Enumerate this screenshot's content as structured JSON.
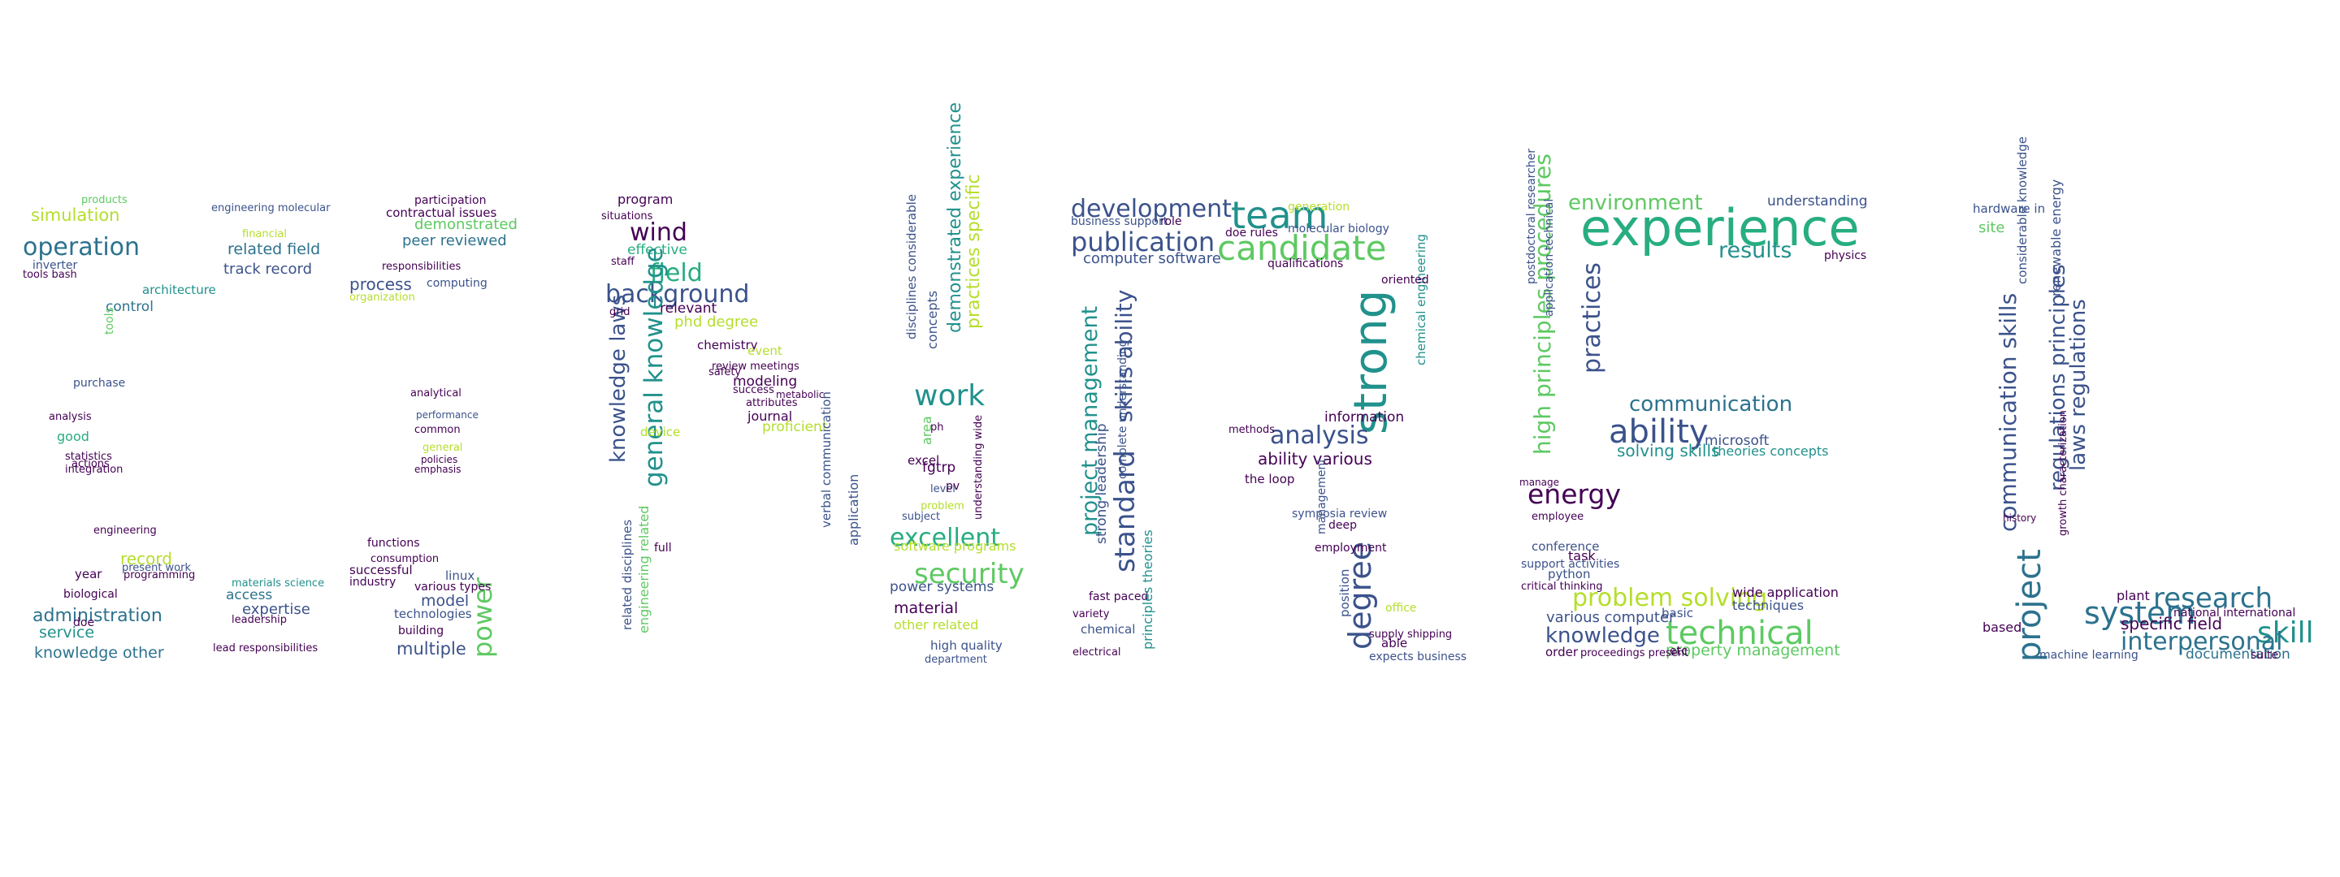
{
  "palette": {
    "purple": "#440154",
    "indigo": "#3b528b",
    "blue": "#2c728e",
    "teal": "#21918c",
    "green": "#27ad81",
    "lime": "#5ec962",
    "yellow": "#b5de2b"
  },
  "words": [
    {
      "id": "w0",
      "text": "operation",
      "color": "#2c728e"
    },
    {
      "id": "w1",
      "text": "simulation",
      "color": "#b5de2b"
    },
    {
      "id": "w2",
      "text": "products",
      "color": "#5ec962"
    },
    {
      "id": "w3",
      "text": "inverter",
      "color": "#3b528b"
    },
    {
      "id": "w4",
      "text": "tools bash",
      "color": "#440154"
    },
    {
      "id": "w5",
      "text": "related field",
      "color": "#2c728e"
    },
    {
      "id": "w6",
      "text": "track record",
      "color": "#3b528b"
    },
    {
      "id": "w7",
      "text": "process",
      "color": "#3b528b"
    },
    {
      "id": "w8",
      "text": "architecture",
      "color": "#21918c"
    },
    {
      "id": "w9",
      "text": "control",
      "color": "#2c728e"
    },
    {
      "id": "w10",
      "text": "engineering molecular",
      "color": "#3b528b"
    },
    {
      "id": "w11",
      "text": "participation",
      "color": "#440154"
    },
    {
      "id": "w12",
      "text": "contractual issues",
      "color": "#440154"
    },
    {
      "id": "w13",
      "text": "demonstrated",
      "color": "#5ec962"
    },
    {
      "id": "w14",
      "text": "peer reviewed",
      "color": "#2c728e"
    },
    {
      "id": "w15",
      "text": "computing",
      "color": "#3b528b"
    },
    {
      "id": "w16",
      "text": "purchase",
      "color": "#3b528b"
    },
    {
      "id": "w17",
      "text": "good",
      "color": "#27ad81"
    },
    {
      "id": "w18",
      "text": "analytical",
      "color": "#440154"
    },
    {
      "id": "w19",
      "text": "common",
      "color": "#440154"
    },
    {
      "id": "w20",
      "text": "record",
      "color": "#b5de2b"
    },
    {
      "id": "w21",
      "text": "year",
      "color": "#440154"
    },
    {
      "id": "w22",
      "text": "administration",
      "color": "#2c728e"
    },
    {
      "id": "w23",
      "text": "service",
      "color": "#21918c"
    },
    {
      "id": "w24",
      "text": "knowledge other",
      "color": "#2c728e"
    },
    {
      "id": "w25",
      "text": "access",
      "color": "#2c728e"
    },
    {
      "id": "w26",
      "text": "expertise",
      "color": "#3b528b"
    },
    {
      "id": "w27",
      "text": "lead responsibilities",
      "color": "#440154"
    },
    {
      "id": "w28",
      "text": "linux",
      "color": "#3b528b"
    },
    {
      "id": "w29",
      "text": "model",
      "color": "#3b528b"
    },
    {
      "id": "w30",
      "text": "multiple",
      "color": "#3b528b"
    },
    {
      "id": "w31",
      "text": "power",
      "color": "#5ec962"
    },
    {
      "id": "w32",
      "text": "program",
      "color": "#440154"
    },
    {
      "id": "w33",
      "text": "wind",
      "color": "#440154"
    },
    {
      "id": "w34",
      "text": "field",
      "color": "#27ad81"
    },
    {
      "id": "w35",
      "text": "background",
      "color": "#3b528b"
    },
    {
      "id": "w36",
      "text": "effective",
      "color": "#27ad81"
    },
    {
      "id": "w37",
      "text": "relevant",
      "color": "#440154"
    },
    {
      "id": "w38",
      "text": "knowledge laws",
      "color": "#3b528b"
    },
    {
      "id": "w39",
      "text": "general knowledge",
      "color": "#21918c"
    },
    {
      "id": "w40",
      "text": "chemistry",
      "color": "#440154"
    },
    {
      "id": "w41",
      "text": "event",
      "color": "#b5de2b"
    },
    {
      "id": "w42",
      "text": "modeling",
      "color": "#440154"
    },
    {
      "id": "w43",
      "text": "journal",
      "color": "#440154"
    },
    {
      "id": "w44",
      "text": "proficient",
      "color": "#b5de2b"
    },
    {
      "id": "w45",
      "text": "work",
      "color": "#21918c"
    },
    {
      "id": "w46",
      "text": "excellent",
      "color": "#27ad81"
    },
    {
      "id": "w47",
      "text": "security",
      "color": "#5ec962"
    },
    {
      "id": "w48",
      "text": "software programs",
      "color": "#b5de2b"
    },
    {
      "id": "w49",
      "text": "power systems",
      "color": "#3b528b"
    },
    {
      "id": "w50",
      "text": "material",
      "color": "#440154"
    },
    {
      "id": "w51",
      "text": "high quality",
      "color": "#3b528b"
    },
    {
      "id": "w52",
      "text": "demonstrated experience",
      "color": "#21918c"
    },
    {
      "id": "w53",
      "text": "practices specific",
      "color": "#b5de2b"
    },
    {
      "id": "w54",
      "text": "development",
      "color": "#3b528b"
    },
    {
      "id": "w55",
      "text": "team",
      "color": "#21918c"
    },
    {
      "id": "w56",
      "text": "candidate",
      "color": "#5ec962"
    },
    {
      "id": "w57",
      "text": "publication",
      "color": "#3b528b"
    },
    {
      "id": "w58",
      "text": "computer software",
      "color": "#3b528b"
    },
    {
      "id": "w59",
      "text": "project management",
      "color": "#21918c"
    },
    {
      "id": "w60",
      "text": "skills ability",
      "color": "#3b528b"
    },
    {
      "id": "w61",
      "text": "standard",
      "color": "#3b528b"
    },
    {
      "id": "w62",
      "text": "strong",
      "color": "#21918c"
    },
    {
      "id": "w63",
      "text": "analysis",
      "color": "#3b528b"
    },
    {
      "id": "w64",
      "text": "ability various",
      "color": "#440154"
    },
    {
      "id": "w65",
      "text": "degree",
      "color": "#3b528b"
    },
    {
      "id": "w66",
      "text": "information",
      "color": "#440154"
    },
    {
      "id": "w67",
      "text": "experience",
      "color": "#27ad81"
    },
    {
      "id": "w68",
      "text": "environment",
      "color": "#5ec962"
    },
    {
      "id": "w69",
      "text": "understanding",
      "color": "#3b528b"
    },
    {
      "id": "w70",
      "text": "results",
      "color": "#21918c"
    },
    {
      "id": "w71",
      "text": "communication",
      "color": "#2c728e"
    },
    {
      "id": "w72",
      "text": "ability",
      "color": "#3b528b"
    },
    {
      "id": "w73",
      "text": "energy",
      "color": "#440154"
    },
    {
      "id": "w74",
      "text": "problem solving",
      "color": "#b5de2b"
    },
    {
      "id": "w75",
      "text": "knowledge",
      "color": "#3b528b"
    },
    {
      "id": "w76",
      "text": "technical",
      "color": "#5ec962"
    },
    {
      "id": "w77",
      "text": "property management",
      "color": "#5ec962"
    },
    {
      "id": "w78",
      "text": "various computer",
      "color": "#3b528b"
    },
    {
      "id": "w79",
      "text": "high principles procedures",
      "color": "#5ec962"
    },
    {
      "id": "w80",
      "text": "practices",
      "color": "#3b528b"
    },
    {
      "id": "w81",
      "text": "research",
      "color": "#2c728e"
    },
    {
      "id": "w82",
      "text": "system",
      "color": "#2c728e"
    },
    {
      "id": "w83",
      "text": "skill",
      "color": "#21918c"
    },
    {
      "id": "w84",
      "text": "interpersonal",
      "color": "#2c728e"
    },
    {
      "id": "w85",
      "text": "project",
      "color": "#2c728e"
    },
    {
      "id": "w86",
      "text": "communication skills",
      "color": "#3b528b"
    },
    {
      "id": "w87",
      "text": "regulations principles",
      "color": "#3b528b"
    },
    {
      "id": "w88",
      "text": "laws regulations",
      "color": "#3b528b"
    },
    {
      "id": "w89",
      "text": "specific field",
      "color": "#440154"
    },
    {
      "id": "w90",
      "text": "documentation",
      "color": "#2c728e"
    },
    {
      "id": "w91",
      "text": "site",
      "color": "#5ec962"
    },
    {
      "id": "w92",
      "text": "hardware in",
      "color": "#3b528b"
    },
    {
      "id": "w93",
      "text": "solving skills",
      "color": "#21918c"
    },
    {
      "id": "w94",
      "text": "microsoft",
      "color": "#3b528b"
    },
    {
      "id": "w95",
      "text": "theories concepts",
      "color": "#21918c"
    },
    {
      "id": "w96",
      "text": "python",
      "color": "#3b528b"
    },
    {
      "id": "w97",
      "text": "techniques",
      "color": "#3b528b"
    },
    {
      "id": "w98",
      "text": "wide application",
      "color": "#440154"
    },
    {
      "id": "w99",
      "text": "physics",
      "color": "#440154"
    },
    {
      "id": "w100",
      "text": "excel",
      "color": "#440154"
    },
    {
      "id": "w101",
      "text": "fgtrp",
      "color": "#440154"
    },
    {
      "id": "w102",
      "text": "level",
      "color": "#3b528b"
    },
    {
      "id": "w103",
      "text": "application",
      "color": "#3b528b"
    },
    {
      "id": "w104",
      "text": "employment",
      "color": "#440154"
    },
    {
      "id": "w105",
      "text": "the loop",
      "color": "#440154"
    },
    {
      "id": "w106",
      "text": "methods",
      "color": "#440154"
    },
    {
      "id": "w107",
      "text": "office",
      "color": "#b5de2b"
    },
    {
      "id": "w108",
      "text": "able",
      "color": "#440154"
    },
    {
      "id": "w109",
      "text": "safety",
      "color": "#440154"
    },
    {
      "id": "w110",
      "text": "full",
      "color": "#440154"
    },
    {
      "id": "w111",
      "text": "doe rules",
      "color": "#440154"
    },
    {
      "id": "w112",
      "text": "task",
      "color": "#440154"
    },
    {
      "id": "w113",
      "text": "conference",
      "color": "#3b528b"
    },
    {
      "id": "w114",
      "text": "basic",
      "color": "#3b528b"
    },
    {
      "id": "w115",
      "text": "etc",
      "color": "#440154"
    },
    {
      "id": "w116",
      "text": "organization",
      "color": "#b5de2b"
    },
    {
      "id": "w117",
      "text": "successful",
      "color": "#440154"
    },
    {
      "id": "w118",
      "text": "industry",
      "color": "#440154"
    },
    {
      "id": "w119",
      "text": "functions",
      "color": "#440154"
    },
    {
      "id": "w120",
      "text": "biological",
      "color": "#440154"
    },
    {
      "id": "w121",
      "text": "present work",
      "color": "#3b528b"
    },
    {
      "id": "w122",
      "text": "phd degree",
      "color": "#b5de2b"
    },
    {
      "id": "w123",
      "text": "situations",
      "color": "#440154"
    },
    {
      "id": "w124",
      "text": "responsibilities",
      "color": "#440154"
    },
    {
      "id": "w125",
      "text": "technologies",
      "color": "#3b528b"
    },
    {
      "id": "w126",
      "text": "building",
      "color": "#440154"
    },
    {
      "id": "w127",
      "text": "various types",
      "color": "#440154"
    },
    {
      "id": "w128",
      "text": "materials science",
      "color": "#21918c"
    },
    {
      "id": "w129",
      "text": "leadership",
      "color": "#440154"
    },
    {
      "id": "w130",
      "text": "doe",
      "color": "#440154"
    },
    {
      "id": "w131",
      "text": "tools",
      "color": "#5ec962"
    },
    {
      "id": "w132",
      "text": "financial",
      "color": "#b5de2b"
    },
    {
      "id": "w133",
      "text": "subject",
      "color": "#3b528b"
    },
    {
      "id": "w134",
      "text": "concepts",
      "color": "#3b528b"
    },
    {
      "id": "w135",
      "text": "area",
      "color": "#5ec962"
    },
    {
      "id": "w136",
      "text": "fast paced",
      "color": "#440154"
    },
    {
      "id": "w137",
      "text": "variety",
      "color": "#440154"
    },
    {
      "id": "w138",
      "text": "chemical",
      "color": "#3b528b"
    },
    {
      "id": "w139",
      "text": "electrical",
      "color": "#440154"
    },
    {
      "id": "w140",
      "text": "chemical engineering",
      "color": "#21918c"
    },
    {
      "id": "w141",
      "text": "national international",
      "color": "#440154"
    },
    {
      "id": "w142",
      "text": "plant",
      "color": "#440154"
    },
    {
      "id": "w143",
      "text": "based",
      "color": "#440154"
    },
    {
      "id": "w144",
      "text": "machine learning",
      "color": "#3b528b"
    },
    {
      "id": "w145",
      "text": "suite",
      "color": "#440154"
    },
    {
      "id": "w146",
      "text": "critical thinking",
      "color": "#440154"
    },
    {
      "id": "w147",
      "text": "support activities",
      "color": "#3b528b"
    },
    {
      "id": "w148",
      "text": "order",
      "color": "#440154"
    },
    {
      "id": "w149",
      "text": "proceedings present",
      "color": "#440154"
    },
    {
      "id": "w150",
      "text": "employee",
      "color": "#440154"
    },
    {
      "id": "w151",
      "text": "review meetings",
      "color": "#440154"
    },
    {
      "id": "w152",
      "text": "success",
      "color": "#440154"
    },
    {
      "id": "w153",
      "text": "attributes",
      "color": "#440154"
    },
    {
      "id": "w154",
      "text": "related disciplines",
      "color": "#3b528b"
    },
    {
      "id": "w155",
      "text": "engineering related",
      "color": "#5ec962"
    },
    {
      "id": "w156",
      "text": "device",
      "color": "#b5de2b"
    },
    {
      "id": "w157",
      "text": "grid",
      "color": "#440154"
    },
    {
      "id": "w158",
      "text": "staff",
      "color": "#440154"
    },
    {
      "id": "w159",
      "text": "ph",
      "color": "#440154"
    },
    {
      "id": "w160",
      "text": "pv",
      "color": "#440154"
    },
    {
      "id": "w161",
      "text": "problem",
      "color": "#b5de2b"
    },
    {
      "id": "w162",
      "text": "other related",
      "color": "#b5de2b"
    },
    {
      "id": "w163",
      "text": "department",
      "color": "#3b528b"
    },
    {
      "id": "w164",
      "text": "disciplines considerable",
      "color": "#3b528b"
    },
    {
      "id": "w165",
      "text": "understanding wide",
      "color": "#440154"
    },
    {
      "id": "w166",
      "text": "verbal communication",
      "color": "#3b528b"
    },
    {
      "id": "w167",
      "text": "deep",
      "color": "#440154"
    },
    {
      "id": "w168",
      "text": "management",
      "color": "#3b528b"
    },
    {
      "id": "w169",
      "text": "position",
      "color": "#3b528b"
    },
    {
      "id": "w170",
      "text": "symposia review",
      "color": "#3b528b"
    },
    {
      "id": "w171",
      "text": "strong leadership",
      "color": "#3b528b"
    },
    {
      "id": "w172",
      "text": "principles theories",
      "color": "#21918c"
    },
    {
      "id": "w173",
      "text": "complete understanding",
      "color": "#3b528b"
    },
    {
      "id": "w174",
      "text": "postdoctoral researcher",
      "color": "#3b528b"
    },
    {
      "id": "w175",
      "text": "application technical",
      "color": "#3b528b"
    },
    {
      "id": "w176",
      "text": "growth characterization",
      "color": "#440154"
    },
    {
      "id": "w177",
      "text": "considerable knowledge",
      "color": "#3b528b"
    },
    {
      "id": "w178",
      "text": "renewable energy",
      "color": "#3b528b"
    },
    {
      "id": "w179",
      "text": "analysis",
      "color": "#440154"
    },
    {
      "id": "w180",
      "text": "integration",
      "color": "#440154"
    },
    {
      "id": "w181",
      "text": "statistics",
      "color": "#440154"
    },
    {
      "id": "w182",
      "text": "actions",
      "color": "#440154"
    },
    {
      "id": "w183",
      "text": "programming",
      "color": "#440154"
    },
    {
      "id": "w184",
      "text": "engineering",
      "color": "#440154"
    },
    {
      "id": "w185",
      "text": "manage",
      "color": "#440154"
    },
    {
      "id": "w186",
      "text": "performance",
      "color": "#3b528b"
    },
    {
      "id": "w187",
      "text": "general",
      "color": "#b5de2b"
    },
    {
      "id": "w188",
      "text": "policies",
      "color": "#440154"
    },
    {
      "id": "w189",
      "text": "emphasis",
      "color": "#440154"
    },
    {
      "id": "w190",
      "text": "consumption",
      "color": "#440154"
    },
    {
      "id": "w191",
      "text": "molecular biology",
      "color": "#3b528b"
    },
    {
      "id": "w192",
      "text": "qualifications",
      "color": "#440154"
    },
    {
      "id": "w193",
      "text": "business support",
      "color": "#3b528b"
    },
    {
      "id": "w194",
      "text": "role",
      "color": "#440154"
    },
    {
      "id": "w195",
      "text": "generation",
      "color": "#b5de2b"
    },
    {
      "id": "w196",
      "text": "oriented",
      "color": "#440154"
    },
    {
      "id": "w197",
      "text": "history",
      "color": "#440154"
    },
    {
      "id": "w198",
      "text": "expects business",
      "color": "#3b528b"
    },
    {
      "id": "w199",
      "text": "supply shipping",
      "color": "#440154"
    },
    {
      "id": "w200",
      "text": "metabolic",
      "color": "#440154"
    }
  ]
}
